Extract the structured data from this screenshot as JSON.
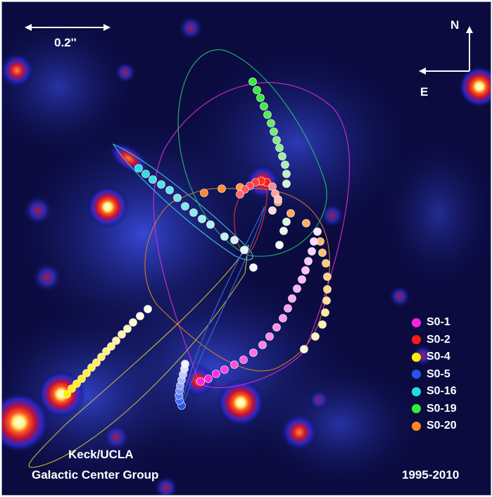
{
  "labels": {
    "scale": "0.2''",
    "north": "N",
    "east": "E",
    "credit_line1": "Keck/UCLA",
    "credit_line2": "Galactic Center Group",
    "years": "1995-2010"
  },
  "legend": [
    {
      "label": "S0-1",
      "color": "#ff22dd"
    },
    {
      "label": "S0-2",
      "color": "#ff1a1a"
    },
    {
      "label": "S0-4",
      "color": "#ffee00"
    },
    {
      "label": "S0-5",
      "color": "#2255ee"
    },
    {
      "label": "S0-16",
      "color": "#22dddd"
    },
    {
      "label": "S0-19",
      "color": "#33ee33"
    },
    {
      "label": "S0-20",
      "color": "#ff8822"
    }
  ]
}
